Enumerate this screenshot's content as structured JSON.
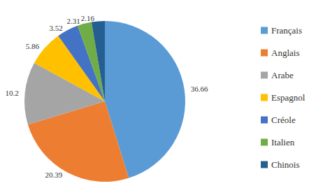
{
  "chart_data": {
    "type": "pie",
    "categories": [
      "Français",
      "Anglais",
      "Arabe",
      "Espagnol",
      "Créole",
      "Italien",
      "Chinois"
    ],
    "values": [
      36.66,
      20.39,
      10.2,
      5.86,
      3.52,
      2.31,
      2.16
    ],
    "colors": [
      "#5b9bd5",
      "#ed7d31",
      "#a5a5a5",
      "#ffc000",
      "#4472c4",
      "#70ad47",
      "#255e91"
    ],
    "data_labels": true,
    "legend": "right"
  }
}
